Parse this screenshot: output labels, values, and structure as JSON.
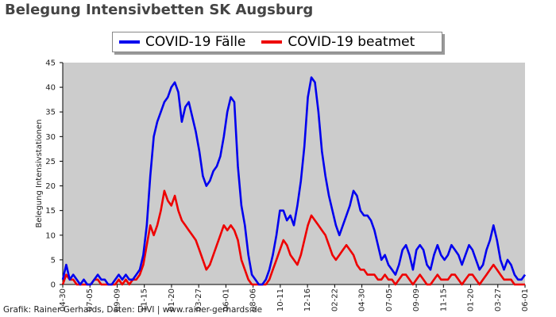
{
  "header": {
    "title": "Belegung Intensivbetten SK Augsburg"
  },
  "footer": {
    "credit": "Grafik: Rainer Gerhards, Daten: DIVI | www.rainer-gerhards.de"
  },
  "colors": {
    "plot_bg": "#cccccc",
    "cases": "#0000ee",
    "ventilated": "#ee0000"
  },
  "chart_data": {
    "type": "line",
    "title": "Belegung Intensivbetten SK Augsburg",
    "ylabel": "Belegung Intensivstationen",
    "xlabel": "",
    "ylim": [
      0,
      45
    ],
    "yticks": [
      0,
      5,
      10,
      15,
      20,
      25,
      30,
      35,
      40,
      45
    ],
    "xticks": [
      "04-30",
      "07-05",
      "09-09",
      "11-15",
      "01-20",
      "03-27",
      "06-01",
      "08-06",
      "10-11",
      "12-16",
      "02-22",
      "04-30",
      "07-05",
      "09-09",
      "11-15",
      "01-20",
      "03-27",
      "06-01"
    ],
    "legend_position": "top",
    "grid": false,
    "series": [
      {
        "name": "COVID-19 Fälle",
        "color": "#0000ee",
        "values": [
          1,
          4,
          1,
          2,
          1,
          0,
          1,
          0,
          0,
          1,
          2,
          1,
          1,
          0,
          0,
          1,
          2,
          1,
          2,
          1,
          1,
          2,
          3,
          6,
          12,
          22,
          30,
          33,
          35,
          37,
          38,
          40,
          41,
          39,
          33,
          36,
          37,
          34,
          31,
          27,
          22,
          20,
          21,
          23,
          24,
          26,
          30,
          35,
          38,
          37,
          24,
          16,
          12,
          6,
          2,
          1,
          0,
          0,
          1,
          3,
          6,
          10,
          15,
          15,
          13,
          14,
          12,
          16,
          21,
          28,
          38,
          42,
          41,
          35,
          27,
          22,
          18,
          15,
          12,
          10,
          12,
          14,
          16,
          19,
          18,
          15,
          14,
          14,
          13,
          11,
          8,
          5,
          6,
          4,
          3,
          2,
          4,
          7,
          8,
          6,
          3,
          7,
          8,
          7,
          4,
          3,
          6,
          8,
          6,
          5,
          6,
          8,
          7,
          6,
          4,
          6,
          8,
          7,
          5,
          3,
          4,
          7,
          9,
          12,
          9,
          5,
          3,
          5,
          4,
          2,
          1,
          1,
          2
        ]
      },
      {
        "name": "COVID-19 beatmet",
        "color": "#ee0000",
        "values": [
          0,
          2,
          1,
          1,
          0,
          0,
          0,
          0,
          0,
          1,
          1,
          0,
          0,
          0,
          0,
          0,
          1,
          0,
          1,
          0,
          1,
          1,
          2,
          4,
          8,
          12,
          10,
          12,
          15,
          19,
          17,
          16,
          18,
          15,
          13,
          12,
          11,
          10,
          9,
          7,
          5,
          3,
          4,
          6,
          8,
          10,
          12,
          11,
          12,
          11,
          9,
          5,
          3,
          1,
          0,
          0,
          0,
          0,
          0,
          1,
          3,
          5,
          7,
          9,
          8,
          6,
          5,
          4,
          6,
          9,
          12,
          14,
          13,
          12,
          11,
          10,
          8,
          6,
          5,
          6,
          7,
          8,
          7,
          6,
          4,
          3,
          3,
          2,
          2,
          2,
          1,
          1,
          2,
          1,
          1,
          0,
          1,
          2,
          2,
          1,
          0,
          1,
          2,
          1,
          0,
          0,
          1,
          2,
          1,
          1,
          1,
          2,
          2,
          1,
          0,
          1,
          2,
          2,
          1,
          0,
          1,
          2,
          3,
          4,
          3,
          2,
          1,
          1,
          1,
          0,
          0,
          0,
          0
        ]
      }
    ]
  }
}
